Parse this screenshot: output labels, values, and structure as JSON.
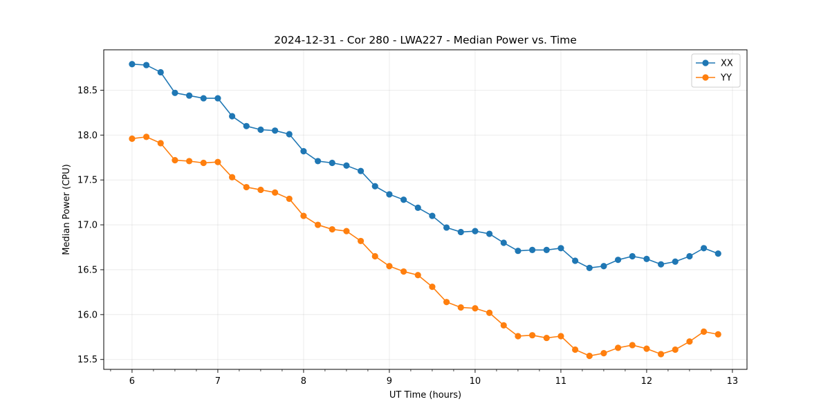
{
  "chart_data": {
    "type": "line",
    "title": "2024-12-31 - Cor 280 - LWA227 - Median Power vs. Time",
    "xlabel": "UT Time (hours)",
    "ylabel": "Median Power (CPU)",
    "xlim": [
      5.67,
      13.17
    ],
    "ylim": [
      15.39,
      18.95
    ],
    "xticks": [
      6,
      7,
      8,
      9,
      10,
      11,
      12,
      13
    ],
    "xtick_labels": [
      "6",
      "7",
      "8",
      "9",
      "10",
      "11",
      "12",
      "13"
    ],
    "xminor_step": 0.25,
    "yticks": [
      15.5,
      16.0,
      16.5,
      17.0,
      17.5,
      18.0,
      18.5
    ],
    "ytick_labels": [
      "15.5",
      "16.0",
      "16.5",
      "17.0",
      "17.5",
      "18.0",
      "18.5"
    ],
    "grid": true,
    "legend_position": "top-right",
    "x": [
      6.0,
      6.1667,
      6.3333,
      6.5,
      6.6667,
      6.8333,
      7.0,
      7.1667,
      7.3333,
      7.5,
      7.6667,
      7.8333,
      8.0,
      8.1667,
      8.3333,
      8.5,
      8.6667,
      8.8333,
      9.0,
      9.1667,
      9.3333,
      9.5,
      9.6667,
      9.8333,
      10.0,
      10.1667,
      10.3333,
      10.5,
      10.6667,
      10.8333,
      11.0,
      11.1667,
      11.3333,
      11.5,
      11.6667,
      11.8333,
      12.0,
      12.1667,
      12.3333,
      12.5,
      12.6667,
      12.8333
    ],
    "series": [
      {
        "name": "XX",
        "color": "#1f77b4",
        "values": [
          18.79,
          18.78,
          18.7,
          18.47,
          18.44,
          18.41,
          18.41,
          18.21,
          18.1,
          18.06,
          18.05,
          18.01,
          17.82,
          17.71,
          17.69,
          17.66,
          17.6,
          17.43,
          17.34,
          17.28,
          17.19,
          17.1,
          16.97,
          16.92,
          16.93,
          16.9,
          16.8,
          16.71,
          16.72,
          16.72,
          16.74,
          16.6,
          16.52,
          16.54,
          16.61,
          16.65,
          16.62,
          16.56,
          16.59,
          16.65,
          16.74,
          16.68
        ]
      },
      {
        "name": "YY",
        "color": "#ff7f0e",
        "values": [
          17.96,
          17.98,
          17.91,
          17.72,
          17.71,
          17.69,
          17.7,
          17.53,
          17.42,
          17.39,
          17.36,
          17.29,
          17.1,
          17.0,
          16.95,
          16.93,
          16.82,
          16.65,
          16.54,
          16.48,
          16.44,
          16.31,
          16.14,
          16.08,
          16.07,
          16.02,
          15.88,
          15.76,
          15.77,
          15.74,
          15.76,
          15.61,
          15.54,
          15.57,
          15.63,
          15.66,
          15.62,
          15.56,
          15.61,
          15.7,
          15.81,
          15.78
        ]
      }
    ]
  }
}
